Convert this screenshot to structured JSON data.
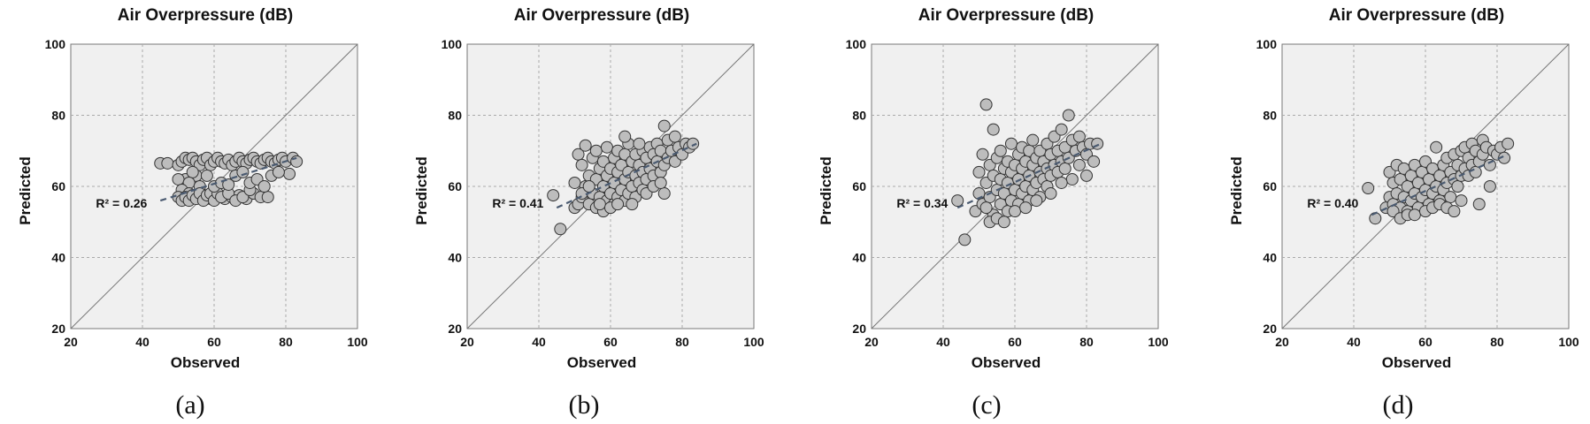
{
  "chart_data": [
    {
      "type": "scatter",
      "title": "Air Overpressure (dB)",
      "xlabel": "Observed",
      "ylabel": "Predicted",
      "xlim": [
        20,
        100
      ],
      "ylim": [
        20,
        100
      ],
      "ticks": [
        "20",
        "40",
        "60",
        "80",
        "100"
      ],
      "grid": true,
      "annotation": "R² = 0.26",
      "caption": "(a)",
      "trendline": [
        [
          45,
          56
        ],
        [
          83,
          68
        ]
      ],
      "points": [
        [
          45,
          66.5
        ],
        [
          47,
          66.5
        ],
        [
          50,
          66
        ],
        [
          51,
          67
        ],
        [
          52,
          68
        ],
        [
          53,
          67.5
        ],
        [
          54,
          68
        ],
        [
          55,
          67
        ],
        [
          56,
          66
        ],
        [
          57,
          67.5
        ],
        [
          58,
          68
        ],
        [
          59,
          66
        ],
        [
          60,
          67
        ],
        [
          61,
          68
        ],
        [
          62,
          67
        ],
        [
          63,
          66.5
        ],
        [
          64,
          67.5
        ],
        [
          65,
          66
        ],
        [
          66,
          67
        ],
        [
          67,
          68
        ],
        [
          68,
          67
        ],
        [
          69,
          66.5
        ],
        [
          70,
          67.5
        ],
        [
          71,
          68
        ],
        [
          72,
          67
        ],
        [
          73,
          66.5
        ],
        [
          74,
          67.5
        ],
        [
          75,
          68
        ],
        [
          76,
          67
        ],
        [
          77,
          66.5
        ],
        [
          78,
          67.5
        ],
        [
          79,
          68
        ],
        [
          80,
          67
        ],
        [
          81,
          63.5
        ],
        [
          82,
          68
        ],
        [
          83,
          67
        ],
        [
          52,
          62
        ],
        [
          55,
          63
        ],
        [
          54,
          64
        ],
        [
          50,
          62
        ],
        [
          53,
          61
        ],
        [
          56,
          60
        ],
        [
          58,
          63
        ],
        [
          51,
          59
        ],
        [
          53,
          58
        ],
        [
          55,
          57.5
        ],
        [
          57,
          57
        ],
        [
          59,
          56.5
        ],
        [
          61,
          57
        ],
        [
          63,
          56.5
        ],
        [
          65,
          57
        ],
        [
          67,
          57.5
        ],
        [
          69,
          56.5
        ],
        [
          71,
          58
        ],
        [
          73,
          57
        ],
        [
          75,
          57
        ],
        [
          50,
          57
        ],
        [
          51,
          56
        ],
        [
          52,
          57
        ],
        [
          53,
          56
        ],
        [
          54,
          57.5
        ],
        [
          55,
          56.5
        ],
        [
          56,
          58
        ],
        [
          57,
          56
        ],
        [
          58,
          57.5
        ],
        [
          59,
          58
        ],
        [
          60,
          56
        ],
        [
          61,
          58
        ],
        [
          62,
          57
        ],
        [
          64,
          58
        ],
        [
          66,
          56
        ],
        [
          68,
          57
        ],
        [
          70,
          59
        ],
        [
          60,
          60
        ],
        [
          62,
          61
        ],
        [
          64,
          60.5
        ],
        [
          70,
          61
        ],
        [
          72,
          62
        ],
        [
          74,
          60
        ],
        [
          66,
          63
        ],
        [
          68,
          64
        ],
        [
          76,
          63
        ],
        [
          78,
          64
        ]
      ]
    },
    {
      "type": "scatter",
      "title": "Air Overpressure (dB)",
      "xlabel": "Observed",
      "ylabel": "Predicted",
      "xlim": [
        20,
        100
      ],
      "ylim": [
        20,
        100
      ],
      "ticks": [
        "20",
        "40",
        "60",
        "80",
        "100"
      ],
      "grid": true,
      "annotation": "R² = 0.41",
      "caption": "(b)",
      "trendline": [
        [
          45,
          54
        ],
        [
          84,
          72
        ]
      ],
      "points": [
        [
          44,
          57.5
        ],
        [
          46,
          48
        ],
        [
          50,
          54
        ],
        [
          50,
          61
        ],
        [
          51,
          55
        ],
        [
          51,
          69
        ],
        [
          52,
          57
        ],
        [
          52,
          66
        ],
        [
          53,
          60
        ],
        [
          53,
          71.5
        ],
        [
          54,
          55
        ],
        [
          54,
          63
        ],
        [
          55,
          58
        ],
        [
          55,
          68
        ],
        [
          56,
          54
        ],
        [
          56,
          62
        ],
        [
          56,
          70
        ],
        [
          57,
          57
        ],
        [
          57,
          65
        ],
        [
          58,
          53
        ],
        [
          58,
          60
        ],
        [
          58,
          67
        ],
        [
          59,
          56
        ],
        [
          59,
          63
        ],
        [
          59,
          71
        ],
        [
          60,
          58
        ],
        [
          60,
          65
        ],
        [
          61,
          55
        ],
        [
          61,
          61
        ],
        [
          61,
          68
        ],
        [
          62,
          57
        ],
        [
          62,
          64
        ],
        [
          62,
          70
        ],
        [
          63,
          59
        ],
        [
          63,
          66
        ],
        [
          64,
          56
        ],
        [
          64,
          62
        ],
        [
          64,
          69
        ],
        [
          65,
          58
        ],
        [
          65,
          64
        ],
        [
          65,
          72
        ],
        [
          66,
          60
        ],
        [
          66,
          67
        ],
        [
          67,
          57
        ],
        [
          67,
          63
        ],
        [
          67,
          69
        ],
        [
          68,
          61
        ],
        [
          68,
          66
        ],
        [
          69,
          59
        ],
        [
          69,
          64
        ],
        [
          69,
          70
        ],
        [
          70,
          62
        ],
        [
          70,
          68
        ],
        [
          71,
          65
        ],
        [
          71,
          71
        ],
        [
          72,
          63
        ],
        [
          72,
          69
        ],
        [
          73,
          67
        ],
        [
          73,
          72
        ],
        [
          74,
          64
        ],
        [
          74,
          70
        ],
        [
          75,
          58
        ],
        [
          75,
          66
        ],
        [
          75,
          77
        ],
        [
          76,
          68
        ],
        [
          76,
          73
        ],
        [
          77,
          70
        ],
        [
          78,
          67
        ],
        [
          78,
          74
        ],
        [
          79,
          71
        ],
        [
          80,
          69
        ],
        [
          81,
          72
        ],
        [
          82,
          71
        ],
        [
          83,
          72
        ],
        [
          52,
          58
        ],
        [
          54,
          60
        ],
        [
          57,
          55
        ],
        [
          60,
          54
        ],
        [
          62,
          55
        ],
        [
          66,
          55
        ],
        [
          70,
          58
        ],
        [
          72,
          60
        ],
        [
          74,
          61
        ],
        [
          64,
          74
        ],
        [
          68,
          72
        ]
      ]
    },
    {
      "type": "scatter",
      "title": "Air Overpressure (dB)",
      "xlabel": "Observed",
      "ylabel": "Predicted",
      "xlim": [
        20,
        100
      ],
      "ylim": [
        20,
        100
      ],
      "ticks": [
        "20",
        "40",
        "60",
        "80",
        "100"
      ],
      "grid": true,
      "annotation": "R² = 0.34",
      "caption": "(c)",
      "trendline": [
        [
          44,
          54
        ],
        [
          84,
          72
        ]
      ],
      "points": [
        [
          44,
          56
        ],
        [
          46,
          45
        ],
        [
          49,
          53
        ],
        [
          50,
          58
        ],
        [
          50,
          64
        ],
        [
          51,
          55
        ],
        [
          51,
          69
        ],
        [
          52,
          61
        ],
        [
          52,
          83
        ],
        [
          53,
          57
        ],
        [
          53,
          66
        ],
        [
          54,
          52
        ],
        [
          54,
          63
        ],
        [
          54,
          76
        ],
        [
          55,
          59
        ],
        [
          55,
          68
        ],
        [
          56,
          55
        ],
        [
          56,
          62
        ],
        [
          56,
          70
        ],
        [
          57,
          58
        ],
        [
          57,
          65
        ],
        [
          58,
          53
        ],
        [
          58,
          61
        ],
        [
          58,
          67
        ],
        [
          59,
          56
        ],
        [
          59,
          64
        ],
        [
          59,
          72
        ],
        [
          60,
          59
        ],
        [
          60,
          66
        ],
        [
          61,
          55
        ],
        [
          61,
          62
        ],
        [
          61,
          69
        ],
        [
          62,
          58
        ],
        [
          62,
          65
        ],
        [
          62,
          71
        ],
        [
          63,
          60
        ],
        [
          63,
          67
        ],
        [
          64,
          56
        ],
        [
          64,
          63
        ],
        [
          64,
          70
        ],
        [
          65,
          59
        ],
        [
          65,
          66
        ],
        [
          65,
          73
        ],
        [
          66,
          61
        ],
        [
          66,
          68
        ],
        [
          67,
          57
        ],
        [
          67,
          64
        ],
        [
          67,
          70
        ],
        [
          68,
          62
        ],
        [
          68,
          67
        ],
        [
          69,
          60
        ],
        [
          69,
          65
        ],
        [
          69,
          72
        ],
        [
          70,
          63
        ],
        [
          70,
          69
        ],
        [
          71,
          66
        ],
        [
          71,
          74
        ],
        [
          72,
          64
        ],
        [
          72,
          70
        ],
        [
          73,
          67
        ],
        [
          73,
          76
        ],
        [
          74,
          65
        ],
        [
          74,
          71
        ],
        [
          75,
          80
        ],
        [
          75,
          68
        ],
        [
          76,
          73
        ],
        [
          76,
          62
        ],
        [
          77,
          70
        ],
        [
          78,
          66
        ],
        [
          78,
          74
        ],
        [
          79,
          71
        ],
        [
          80,
          69
        ],
        [
          80,
          63
        ],
        [
          81,
          72
        ],
        [
          82,
          67
        ],
        [
          83,
          72
        ],
        [
          52,
          54
        ],
        [
          53,
          50
        ],
        [
          55,
          51
        ],
        [
          57,
          50
        ],
        [
          60,
          53
        ],
        [
          63,
          54
        ],
        [
          66,
          56
        ],
        [
          70,
          58
        ],
        [
          73,
          61
        ]
      ]
    },
    {
      "type": "scatter",
      "title": "Air Overpressure (dB)",
      "xlabel": "Observed",
      "ylabel": "Predicted",
      "xlim": [
        20,
        100
      ],
      "ylim": [
        20,
        100
      ],
      "ticks": [
        "20",
        "40",
        "60",
        "80",
        "100"
      ],
      "grid": true,
      "annotation": "R² = 0.40",
      "caption": "(d)",
      "trendline": [
        [
          45,
          52
        ],
        [
          83,
          69
        ]
      ],
      "points": [
        [
          44,
          59.5
        ],
        [
          46,
          51
        ],
        [
          49,
          54
        ],
        [
          50,
          57
        ],
        [
          50,
          64
        ],
        [
          51,
          55
        ],
        [
          51,
          61
        ],
        [
          52,
          58
        ],
        [
          52,
          66
        ],
        [
          53,
          54
        ],
        [
          53,
          62
        ],
        [
          54,
          57
        ],
        [
          54,
          65
        ],
        [
          55,
          53
        ],
        [
          55,
          60
        ],
        [
          56,
          56
        ],
        [
          56,
          63
        ],
        [
          57,
          58
        ],
        [
          57,
          66
        ],
        [
          58,
          54
        ],
        [
          58,
          61
        ],
        [
          59,
          57
        ],
        [
          59,
          64
        ],
        [
          60,
          59
        ],
        [
          60,
          67
        ],
        [
          61,
          55
        ],
        [
          61,
          62
        ],
        [
          62,
          58
        ],
        [
          62,
          65
        ],
        [
          63,
          60
        ],
        [
          63,
          71
        ],
        [
          64,
          56
        ],
        [
          64,
          63
        ],
        [
          65,
          59
        ],
        [
          65,
          66
        ],
        [
          66,
          61
        ],
        [
          66,
          68
        ],
        [
          67,
          57
        ],
        [
          67,
          64
        ],
        [
          68,
          62
        ],
        [
          68,
          69
        ],
        [
          69,
          60
        ],
        [
          69,
          66
        ],
        [
          70,
          63
        ],
        [
          70,
          70
        ],
        [
          71,
          65
        ],
        [
          71,
          71
        ],
        [
          72,
          63
        ],
        [
          72,
          68
        ],
        [
          73,
          66
        ],
        [
          73,
          72
        ],
        [
          74,
          64
        ],
        [
          74,
          70
        ],
        [
          75,
          55
        ],
        [
          75,
          67
        ],
        [
          76,
          69
        ],
        [
          76,
          73
        ],
        [
          77,
          71
        ],
        [
          78,
          66
        ],
        [
          78,
          60
        ],
        [
          79,
          70
        ],
        [
          80,
          69
        ],
        [
          81,
          71
        ],
        [
          82,
          68
        ],
        [
          83,
          72
        ],
        [
          51,
          53
        ],
        [
          53,
          51
        ],
        [
          55,
          52
        ],
        [
          57,
          52
        ],
        [
          60,
          53
        ],
        [
          62,
          54
        ],
        [
          64,
          55
        ],
        [
          66,
          54
        ],
        [
          68,
          53
        ],
        [
          70,
          56
        ]
      ]
    }
  ]
}
